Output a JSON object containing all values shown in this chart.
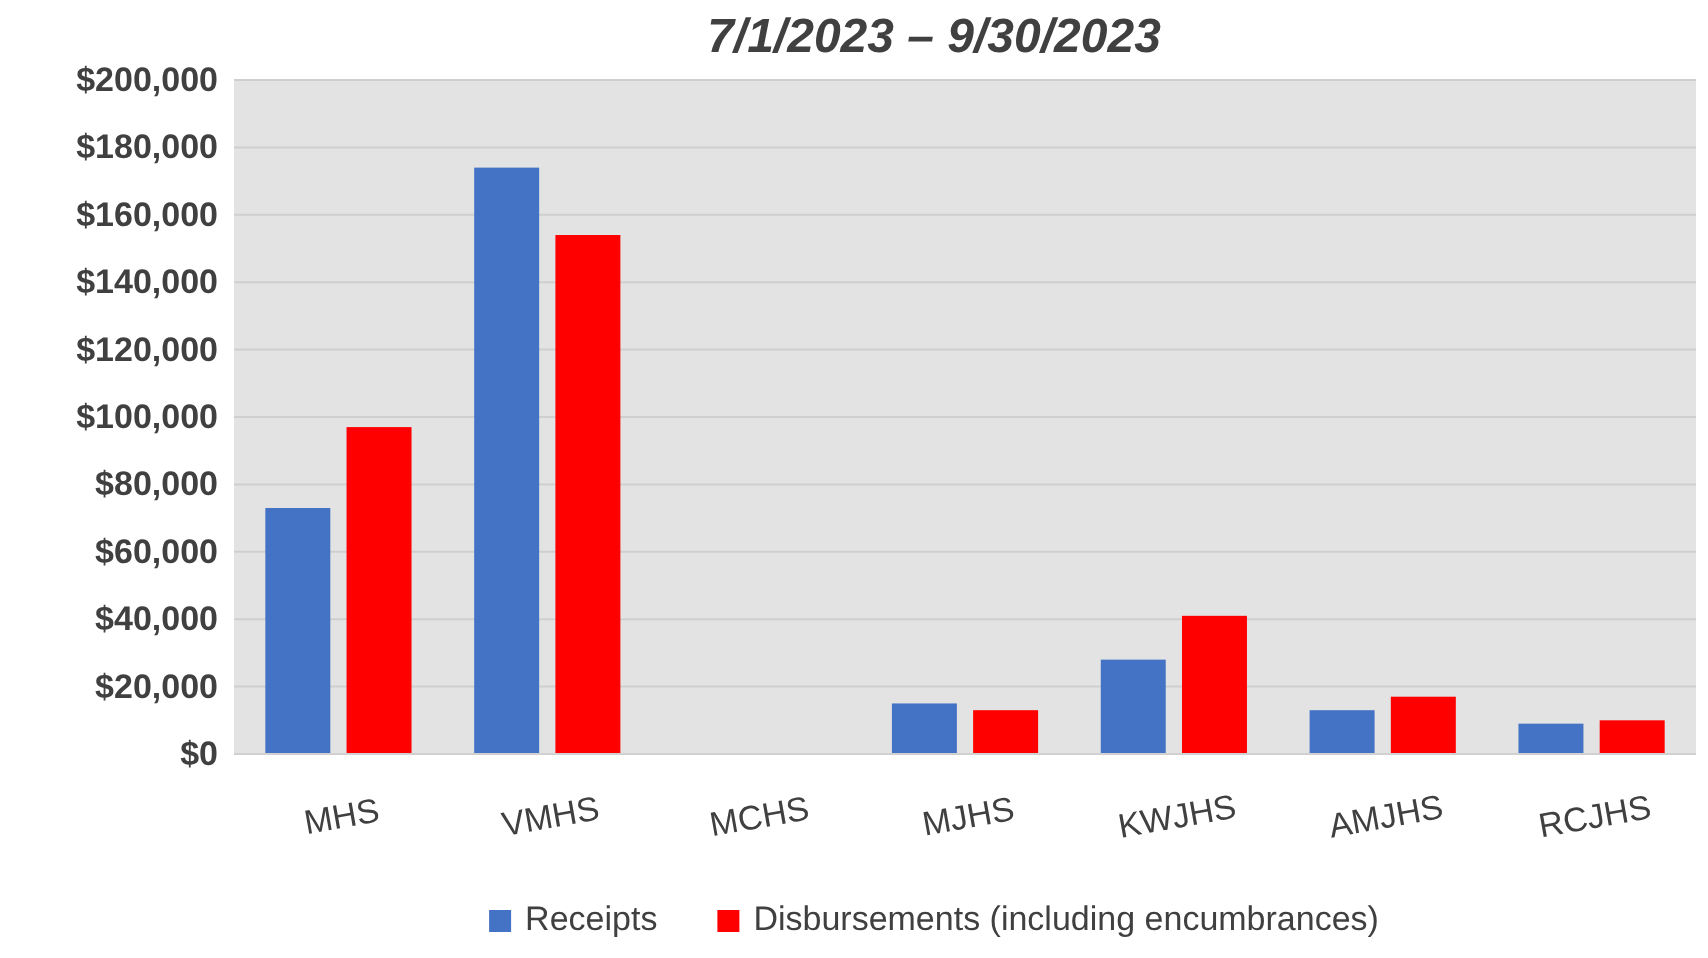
{
  "chart_data": {
    "type": "bar",
    "title": "7/1/2023 – 9/30/2023",
    "categories": [
      "MHS",
      "VMHS",
      "MCHS",
      "MJHS",
      "KWJHS",
      "AMJHS",
      "RCJHS"
    ],
    "series": [
      {
        "name": "Receipts",
        "color": "#4472c4",
        "values": [
          73000,
          174000,
          0,
          15000,
          28000,
          13000,
          9000
        ]
      },
      {
        "name": "Disbursements (including encumbrances)",
        "color": "#ff0000",
        "values": [
          97000,
          154000,
          0,
          13000,
          41000,
          17000,
          10000
        ]
      }
    ],
    "ylim": [
      0,
      200000
    ],
    "yticks": [
      {
        "value": 0,
        "label": "$0"
      },
      {
        "value": 20000,
        "label": "$20,000"
      },
      {
        "value": 40000,
        "label": "$40,000"
      },
      {
        "value": 60000,
        "label": "$60,000"
      },
      {
        "value": 80000,
        "label": "$80,000"
      },
      {
        "value": 100000,
        "label": "$100,000"
      },
      {
        "value": 120000,
        "label": "$120,000"
      },
      {
        "value": 140000,
        "label": "$140,000"
      },
      {
        "value": 160000,
        "label": "$160,000"
      },
      {
        "value": 180000,
        "label": "$180,000"
      },
      {
        "value": 200000,
        "label": "$200,000"
      }
    ],
    "grid": "y",
    "legend": "bottom"
  }
}
